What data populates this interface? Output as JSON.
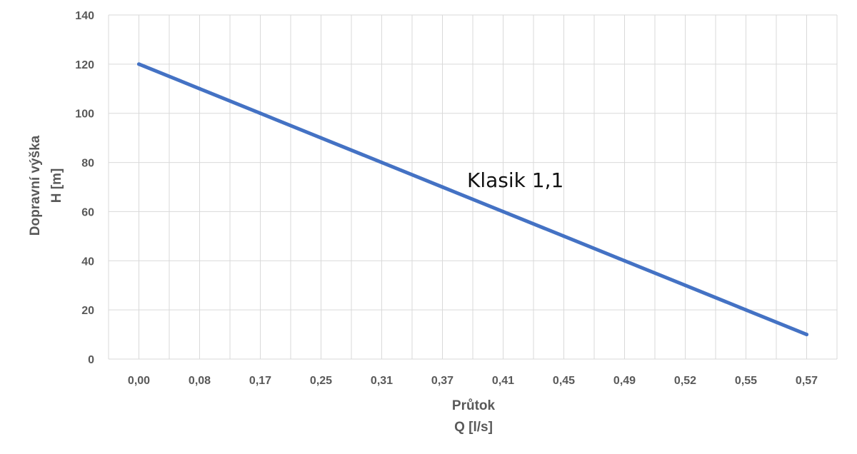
{
  "chart_data": {
    "type": "line",
    "categories": [
      "0,00",
      "0,08",
      "0,17",
      "0,25",
      "0,31",
      "0,37",
      "0,41",
      "0,45",
      "0,49",
      "0,52",
      "0,55",
      "0,57"
    ],
    "series": [
      {
        "name": "Klasik 1,1",
        "values": [
          120,
          110,
          100,
          90,
          80,
          70,
          60,
          50,
          40,
          30,
          20,
          10
        ],
        "color": "#4472c4"
      }
    ],
    "yticks": [
      "0",
      "20",
      "40",
      "60",
      "80",
      "100",
      "120",
      "140"
    ],
    "ylim": [
      0,
      140
    ],
    "ylabel_lines": [
      "Dopravní výška",
      "H [m]"
    ],
    "xlabel_lines": [
      "Průtok",
      "Q [l/s]"
    ],
    "grid": true
  }
}
